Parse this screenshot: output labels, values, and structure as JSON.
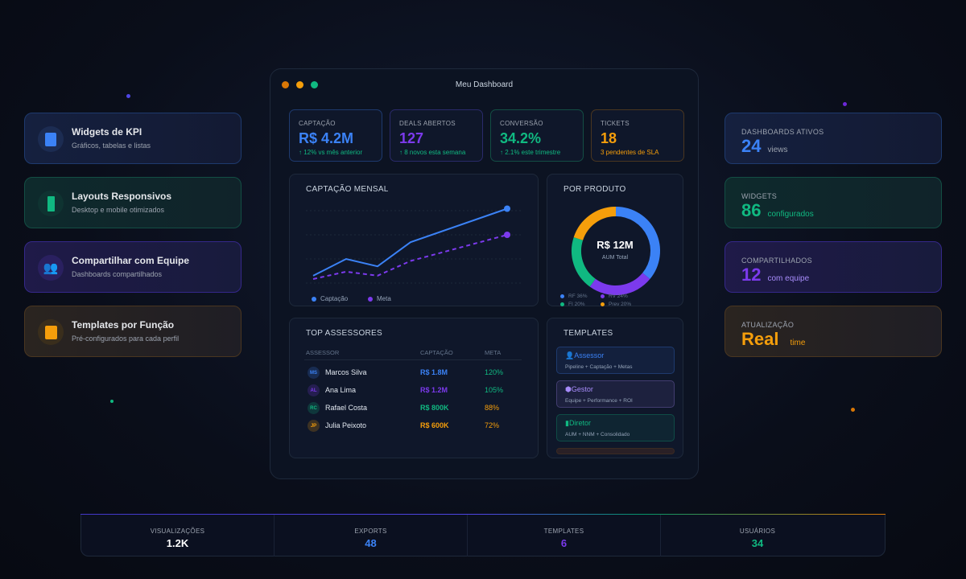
{
  "window": {
    "title": "Meu Dashboard"
  },
  "features": [
    {
      "title": "Widgets de KPI",
      "subtitle": "Gráficos, tabelas e listas",
      "icon": "widget-icon"
    },
    {
      "title": "Layouts Responsivos",
      "subtitle": "Desktop e mobile otimizados",
      "icon": "mobile-icon"
    },
    {
      "title": "Compartilhar com Equipe",
      "subtitle": "Dashboards compartilhados",
      "icon": "team-icon"
    },
    {
      "title": "Templates por Função",
      "subtitle": "Pré-configurados para cada perfil",
      "icon": "clipboard-icon"
    }
  ],
  "side_stats": [
    {
      "label": "DASHBOARDS ATIVOS",
      "value": "24",
      "unit": "views",
      "color": "#3b82f6"
    },
    {
      "label": "WIDGETS",
      "value": "86",
      "unit": "configurados",
      "color": "#10b981"
    },
    {
      "label": "COMPARTILHADOS",
      "value": "12",
      "unit": "com equipe",
      "color": "#7c3aed"
    },
    {
      "label": "ATUALIZAÇÃO",
      "value": "Real",
      "unit": "time",
      "color": "#f59e0b"
    }
  ],
  "kpis": [
    {
      "label": "CAPTAÇÃO",
      "value": "R$ 4.2M",
      "sub": "↑ 12% vs mês anterior",
      "color": "#3b82f6"
    },
    {
      "label": "DEALS ABERTOS",
      "value": "127",
      "sub": "↑ 8 novos esta semana",
      "color": "#7c3aed"
    },
    {
      "label": "CONVERSÃO",
      "value": "34.2%",
      "sub": "↑ 2.1% este trimestre",
      "color": "#10b981"
    },
    {
      "label": "TICKETS",
      "value": "18",
      "sub": "3 pendentes de SLA",
      "color": "#f59e0b"
    }
  ],
  "chart_data": [
    {
      "type": "line",
      "title": "CAPTAÇÃO MENSAL",
      "x": [
        1,
        2,
        3,
        4,
        5
      ],
      "series": [
        {
          "name": "Captação",
          "values": [
            11,
            36,
            25,
            61,
            111
          ],
          "color": "#3b82f6",
          "style": "solid"
        },
        {
          "name": "Meta",
          "values": [
            6,
            17,
            11,
            33,
            72
          ],
          "color": "#7c3aed",
          "style": "dashed"
        }
      ],
      "ylim": [
        0,
        120
      ],
      "grid": true,
      "legend": "bottom-left"
    },
    {
      "type": "pie",
      "title": "POR PRODUTO",
      "center_value": "R$ 12M",
      "center_label": "AUM Total",
      "categories": [
        "RF 36%",
        "RV 24%",
        "FI 20%",
        "Prev 20%"
      ],
      "values": [
        36,
        24,
        20,
        20
      ],
      "colors": [
        "#3b82f6",
        "#7c3aed",
        "#10b981",
        "#f59e0b"
      ]
    }
  ],
  "assessores": {
    "title": "TOP ASSESSORES",
    "headers": [
      "ASSESSOR",
      "CAPTAÇÃO",
      "META"
    ],
    "rows": [
      {
        "initials": "MS",
        "name": "Marcos Silva",
        "captacao": "R$ 1.8M",
        "meta": "120%",
        "color": "#3b82f6",
        "meta_color": "#10b981"
      },
      {
        "initials": "AL",
        "name": "Ana Lima",
        "captacao": "R$ 1.2M",
        "meta": "105%",
        "color": "#7c3aed",
        "meta_color": "#10b981"
      },
      {
        "initials": "RC",
        "name": "Rafael Costa",
        "captacao": "R$ 800K",
        "meta": "88%",
        "color": "#10b981",
        "meta_color": "#f59e0b"
      },
      {
        "initials": "JP",
        "name": "Julia Peixoto",
        "captacao": "R$ 600K",
        "meta": "72%",
        "color": "#f59e0b",
        "meta_color": "#f59e0b"
      }
    ]
  },
  "templates": {
    "title": "TEMPLATES",
    "items": [
      {
        "name": "Assessor",
        "desc": "Pipeline + Captação + Metas",
        "color": "#3b82f6"
      },
      {
        "name": "Gestor",
        "desc": "Equipe + Performance + ROI",
        "color": "#a78bfa"
      },
      {
        "name": "Diretor",
        "desc": "AUM + NNM + Consolidado",
        "color": "#10b981"
      }
    ]
  },
  "bottom_stats": [
    {
      "label": "VISUALIZAÇÕES",
      "value": "1.2K",
      "color": "#ffffff"
    },
    {
      "label": "EXPORTS",
      "value": "48",
      "color": "#3b82f6"
    },
    {
      "label": "TEMPLATES",
      "value": "6",
      "color": "#7c3aed"
    },
    {
      "label": "USUÁRIOS",
      "value": "34",
      "color": "#10b981"
    }
  ]
}
